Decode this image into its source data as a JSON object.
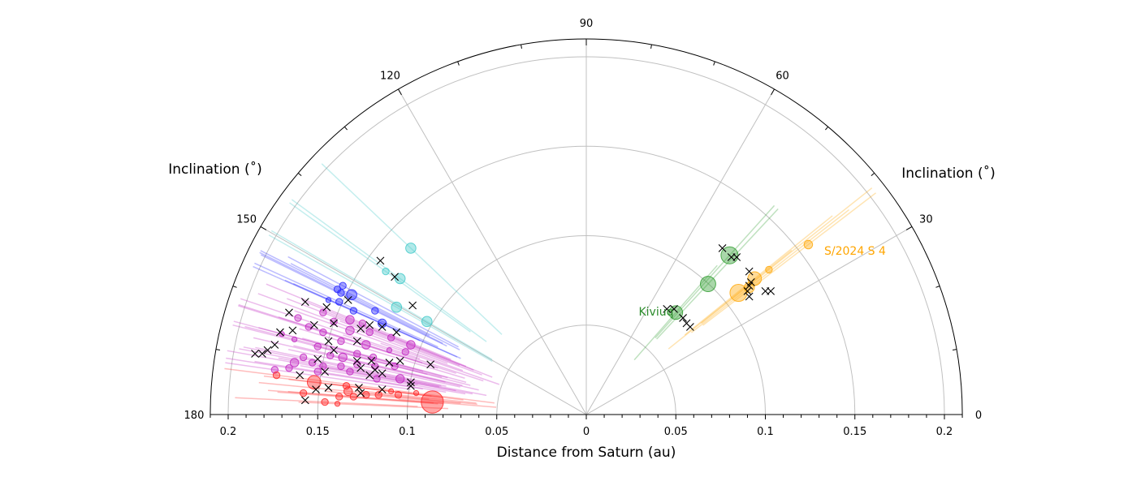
{
  "chart_data": {
    "type": "scatter",
    "subtype": "polar-semicircle",
    "xlabel": "Distance from Saturn (au)",
    "angle_label_left": "Inclination (˚)",
    "angle_label_right": "Inclination (˚)",
    "rlim": [
      0,
      0.21
    ],
    "angle_range": [
      0,
      180
    ],
    "grid": true,
    "radial_ticks": [
      "0.2",
      "0.15",
      "0.1",
      "0.05",
      "0",
      "0.05",
      "0.1",
      "0.15",
      "0.2"
    ],
    "radial_tick_values": [
      -0.2,
      -0.15,
      -0.1,
      -0.05,
      0,
      0.05,
      0.1,
      0.15,
      0.2
    ],
    "angle_ticks": [
      {
        "deg": 0,
        "label": "0"
      },
      {
        "deg": 30,
        "label": "30"
      },
      {
        "deg": 60,
        "label": "60"
      },
      {
        "deg": 90,
        "label": "90"
      },
      {
        "deg": 120,
        "label": "120"
      },
      {
        "deg": 150,
        "label": "150"
      },
      {
        "deg": 180,
        "label": "180"
      }
    ],
    "point_format": "[x_au, z_au, relative_size] in Saturn-centred au (x = r·cos(inc), z = r·sin(inc))",
    "groups": [
      {
        "name": "cyan",
        "color": "#3cc8c8",
        "points": [
          [
            -0.098,
            0.093,
            3
          ],
          [
            -0.112,
            0.08,
            2
          ],
          [
            -0.104,
            0.076,
            3
          ],
          [
            -0.106,
            0.06,
            3
          ],
          [
            -0.089,
            0.052,
            3
          ]
        ]
      },
      {
        "name": "blue",
        "color": "#2020ff",
        "points": [
          [
            -0.136,
            0.072,
            2
          ],
          [
            -0.139,
            0.07,
            2
          ],
          [
            -0.137,
            0.068,
            2
          ],
          [
            -0.131,
            0.067,
            3
          ],
          [
            -0.144,
            0.064,
            1.5
          ],
          [
            -0.138,
            0.063,
            2
          ],
          [
            -0.13,
            0.058,
            2
          ],
          [
            -0.118,
            0.058,
            2
          ],
          [
            -0.114,
            0.051,
            2.5
          ]
        ]
      },
      {
        "name": "magenta",
        "color": "#c020c0",
        "points": [
          [
            -0.147,
            0.057,
            2
          ],
          [
            -0.161,
            0.054,
            2
          ],
          [
            -0.17,
            0.045,
            1.5
          ],
          [
            -0.163,
            0.042,
            1.5
          ],
          [
            -0.155,
            0.049,
            2
          ],
          [
            -0.141,
            0.052,
            2
          ],
          [
            -0.132,
            0.053,
            2.5
          ],
          [
            -0.125,
            0.051,
            2
          ],
          [
            -0.147,
            0.046,
            2
          ],
          [
            -0.132,
            0.047,
            2.5
          ],
          [
            -0.121,
            0.046,
            2
          ],
          [
            -0.109,
            0.043,
            2
          ],
          [
            -0.098,
            0.039,
            2.5
          ],
          [
            -0.158,
            0.032,
            2
          ],
          [
            -0.15,
            0.038,
            2
          ],
          [
            -0.143,
            0.033,
            2
          ],
          [
            -0.136,
            0.032,
            2.5
          ],
          [
            -0.128,
            0.034,
            2
          ],
          [
            -0.119,
            0.032,
            2
          ],
          [
            -0.11,
            0.036,
            1.5
          ],
          [
            -0.101,
            0.035,
            2
          ],
          [
            -0.163,
            0.029,
            2.5
          ],
          [
            -0.153,
            0.029,
            2
          ],
          [
            -0.147,
            0.027,
            2
          ],
          [
            -0.137,
            0.027,
            2
          ],
          [
            -0.128,
            0.028,
            2
          ],
          [
            -0.118,
            0.027,
            2
          ],
          [
            -0.107,
            0.027,
            2
          ],
          [
            -0.174,
            0.025,
            2
          ],
          [
            -0.15,
            0.024,
            2
          ],
          [
            -0.132,
            0.024,
            2
          ],
          [
            -0.117,
            0.02,
            2
          ],
          [
            -0.104,
            0.02,
            2.5
          ],
          [
            -0.137,
            0.041,
            2
          ],
          [
            -0.123,
            0.039,
            2.5
          ],
          [
            -0.166,
            0.026,
            2
          ]
        ]
      },
      {
        "name": "red",
        "color": "#ff2020",
        "points": [
          [
            -0.152,
            0.018,
            4
          ],
          [
            -0.173,
            0.022,
            2
          ],
          [
            -0.086,
            0.007,
            6.5
          ],
          [
            -0.158,
            0.012,
            2
          ],
          [
            -0.146,
            0.007,
            2
          ],
          [
            -0.138,
            0.01,
            2
          ],
          [
            -0.139,
            0.006,
            1.5
          ],
          [
            -0.133,
            0.013,
            2.5
          ],
          [
            -0.13,
            0.01,
            2
          ],
          [
            -0.123,
            0.011,
            2
          ],
          [
            -0.116,
            0.011,
            2
          ],
          [
            -0.109,
            0.013,
            1.5
          ],
          [
            -0.105,
            0.011,
            2
          ],
          [
            -0.095,
            0.012,
            1.5
          ],
          [
            -0.134,
            0.016,
            2
          ]
        ]
      },
      {
        "name": "green",
        "color": "#2a9a2a",
        "points": [
          [
            0.08,
            0.089,
            5
          ],
          [
            0.068,
            0.073,
            4.5
          ],
          [
            0.05,
            0.057,
            4
          ]
        ]
      },
      {
        "name": "orange",
        "color": "#ffa500",
        "points": [
          [
            0.124,
            0.095,
            2.5
          ],
          [
            0.102,
            0.081,
            2
          ],
          [
            0.094,
            0.076,
            4
          ],
          [
            0.085,
            0.068,
            5
          ],
          [
            0.091,
            0.071,
            3
          ]
        ]
      }
    ],
    "crosses": [
      [
        -0.115,
        0.086
      ],
      [
        -0.107,
        0.077
      ],
      [
        -0.097,
        0.061
      ],
      [
        -0.157,
        0.063
      ],
      [
        -0.145,
        0.06
      ],
      [
        -0.133,
        0.064
      ],
      [
        -0.166,
        0.057
      ],
      [
        -0.152,
        0.05
      ],
      [
        -0.141,
        0.051
      ],
      [
        -0.121,
        0.05
      ],
      [
        -0.126,
        0.048
      ],
      [
        -0.114,
        0.049
      ],
      [
        -0.106,
        0.046
      ],
      [
        -0.171,
        0.046
      ],
      [
        -0.164,
        0.047
      ],
      [
        -0.144,
        0.041
      ],
      [
        -0.141,
        0.036
      ],
      [
        -0.128,
        0.041
      ],
      [
        -0.174,
        0.039
      ],
      [
        -0.178,
        0.036
      ],
      [
        -0.181,
        0.034
      ],
      [
        -0.185,
        0.034
      ],
      [
        -0.15,
        0.031
      ],
      [
        -0.128,
        0.03
      ],
      [
        -0.12,
        0.03
      ],
      [
        -0.11,
        0.029
      ],
      [
        -0.104,
        0.03
      ],
      [
        -0.087,
        0.028
      ],
      [
        -0.126,
        0.026
      ],
      [
        -0.118,
        0.025
      ],
      [
        -0.146,
        0.024
      ],
      [
        -0.16,
        0.022
      ],
      [
        -0.121,
        0.022
      ],
      [
        -0.114,
        0.023
      ],
      [
        -0.098,
        0.018
      ],
      [
        -0.098,
        0.016
      ],
      [
        -0.114,
        0.014
      ],
      [
        -0.151,
        0.014
      ],
      [
        -0.157,
        0.008
      ],
      [
        -0.144,
        0.015
      ],
      [
        -0.126,
        0.012
      ],
      [
        -0.127,
        0.015
      ],
      [
        0.076,
        0.093
      ],
      [
        0.081,
        0.088
      ],
      [
        0.084,
        0.088
      ],
      [
        0.091,
        0.08
      ],
      [
        0.092,
        0.074
      ],
      [
        0.091,
        0.072
      ],
      [
        0.09,
        0.069
      ],
      [
        0.091,
        0.066
      ],
      [
        0.1,
        0.069
      ],
      [
        0.103,
        0.069
      ],
      [
        0.045,
        0.059
      ],
      [
        0.049,
        0.059
      ],
      [
        0.054,
        0.054
      ],
      [
        0.056,
        0.051
      ],
      [
        0.058,
        0.049
      ]
    ],
    "annotations": [
      {
        "text": "Kiviuq",
        "color": "#2a8a2a"
      },
      {
        "text": "S/2024 S 4",
        "color": "#ffa500"
      }
    ]
  }
}
